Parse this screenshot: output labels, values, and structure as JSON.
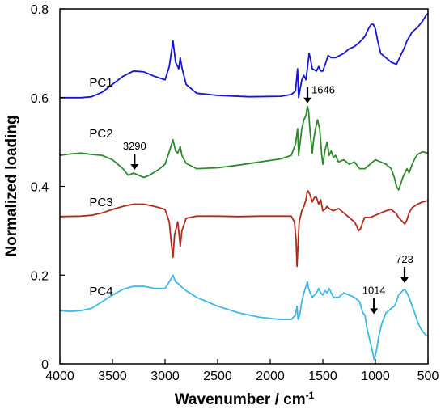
{
  "chart_data": {
    "type": "line",
    "xlabel": "Wavenumber / cm",
    "xlabel_sup": "-1",
    "ylabel": "Normalized loading",
    "xlim": [
      4000,
      500
    ],
    "ylim": [
      0,
      0.8
    ],
    "x_ticks": [
      4000,
      3500,
      3000,
      2500,
      2000,
      1500,
      1000,
      500
    ],
    "y_ticks": [
      0,
      0.2,
      0.4,
      0.6,
      0.8
    ],
    "y_tick_labels": [
      "0",
      "0.2",
      "0.4",
      "0.6",
      "0.8"
    ],
    "grid": false,
    "series": [
      {
        "name": "PC1",
        "color": "#1515d6",
        "points": [
          [
            4000,
            0.6
          ],
          [
            3800,
            0.6
          ],
          [
            3700,
            0.602
          ],
          [
            3600,
            0.612
          ],
          [
            3500,
            0.63
          ],
          [
            3400,
            0.648
          ],
          [
            3300,
            0.66
          ],
          [
            3200,
            0.658
          ],
          [
            3100,
            0.648
          ],
          [
            3000,
            0.64
          ],
          [
            2960,
            0.67
          ],
          [
            2925,
            0.728
          ],
          [
            2900,
            0.68
          ],
          [
            2870,
            0.665
          ],
          [
            2855,
            0.69
          ],
          [
            2840,
            0.668
          ],
          [
            2800,
            0.63
          ],
          [
            2700,
            0.61
          ],
          [
            2500,
            0.605
          ],
          [
            2200,
            0.602
          ],
          [
            1900,
            0.603
          ],
          [
            1800,
            0.607
          ],
          [
            1760,
            0.615
          ],
          [
            1740,
            0.665
          ],
          [
            1730,
            0.6
          ],
          [
            1715,
            0.62
          ],
          [
            1700,
            0.64
          ],
          [
            1680,
            0.65
          ],
          [
            1660,
            0.64
          ],
          [
            1640,
            0.68
          ],
          [
            1630,
            0.7
          ],
          [
            1620,
            0.69
          ],
          [
            1600,
            0.665
          ],
          [
            1560,
            0.66
          ],
          [
            1540,
            0.67
          ],
          [
            1520,
            0.66
          ],
          [
            1500,
            0.66
          ],
          [
            1470,
            0.68
          ],
          [
            1450,
            0.695
          ],
          [
            1420,
            0.69
          ],
          [
            1380,
            0.69
          ],
          [
            1300,
            0.7
          ],
          [
            1250,
            0.71
          ],
          [
            1200,
            0.715
          ],
          [
            1150,
            0.725
          ],
          [
            1100,
            0.738
          ],
          [
            1060,
            0.758
          ],
          [
            1040,
            0.765
          ],
          [
            1020,
            0.765
          ],
          [
            1000,
            0.755
          ],
          [
            980,
            0.73
          ],
          [
            950,
            0.7
          ],
          [
            900,
            0.69
          ],
          [
            850,
            0.68
          ],
          [
            800,
            0.675
          ],
          [
            780,
            0.685
          ],
          [
            760,
            0.695
          ],
          [
            740,
            0.705
          ],
          [
            720,
            0.715
          ],
          [
            700,
            0.728
          ],
          [
            650,
            0.748
          ],
          [
            600,
            0.758
          ],
          [
            550,
            0.773
          ],
          [
            520,
            0.785
          ],
          [
            500,
            0.79
          ]
        ]
      },
      {
        "name": "PC2",
        "color": "#2f8a2f",
        "points": [
          [
            4000,
            0.47
          ],
          [
            3900,
            0.473
          ],
          [
            3800,
            0.475
          ],
          [
            3700,
            0.472
          ],
          [
            3600,
            0.47
          ],
          [
            3500,
            0.46
          ],
          [
            3400,
            0.44
          ],
          [
            3350,
            0.425
          ],
          [
            3300,
            0.43
          ],
          [
            3250,
            0.425
          ],
          [
            3200,
            0.42
          ],
          [
            3150,
            0.425
          ],
          [
            3100,
            0.432
          ],
          [
            3050,
            0.44
          ],
          [
            3000,
            0.45
          ],
          [
            2960,
            0.478
          ],
          [
            2925,
            0.505
          ],
          [
            2900,
            0.48
          ],
          [
            2880,
            0.475
          ],
          [
            2855,
            0.49
          ],
          [
            2840,
            0.47
          ],
          [
            2800,
            0.452
          ],
          [
            2700,
            0.44
          ],
          [
            2500,
            0.442
          ],
          [
            2300,
            0.448
          ],
          [
            2100,
            0.455
          ],
          [
            1900,
            0.462
          ],
          [
            1800,
            0.47
          ],
          [
            1760,
            0.495
          ],
          [
            1740,
            0.53
          ],
          [
            1730,
            0.47
          ],
          [
            1720,
            0.49
          ],
          [
            1700,
            0.53
          ],
          [
            1680,
            0.55
          ],
          [
            1660,
            0.56
          ],
          [
            1646,
            0.58
          ],
          [
            1635,
            0.57
          ],
          [
            1620,
            0.52
          ],
          [
            1600,
            0.475
          ],
          [
            1590,
            0.5
          ],
          [
            1570,
            0.53
          ],
          [
            1550,
            0.55
          ],
          [
            1530,
            0.53
          ],
          [
            1510,
            0.47
          ],
          [
            1500,
            0.45
          ],
          [
            1480,
            0.48
          ],
          [
            1460,
            0.5
          ],
          [
            1440,
            0.47
          ],
          [
            1420,
            0.48
          ],
          [
            1400,
            0.465
          ],
          [
            1380,
            0.47
          ],
          [
            1350,
            0.455
          ],
          [
            1300,
            0.46
          ],
          [
            1250,
            0.45
          ],
          [
            1200,
            0.455
          ],
          [
            1150,
            0.44
          ],
          [
            1100,
            0.44
          ],
          [
            1050,
            0.45
          ],
          [
            1000,
            0.46
          ],
          [
            950,
            0.455
          ],
          [
            900,
            0.45
          ],
          [
            850,
            0.44
          ],
          [
            820,
            0.42
          ],
          [
            800,
            0.4
          ],
          [
            780,
            0.392
          ],
          [
            760,
            0.405
          ],
          [
            740,
            0.42
          ],
          [
            720,
            0.43
          ],
          [
            700,
            0.44
          ],
          [
            680,
            0.43
          ],
          [
            650,
            0.45
          ],
          [
            620,
            0.465
          ],
          [
            600,
            0.472
          ],
          [
            550,
            0.478
          ],
          [
            500,
            0.475
          ]
        ]
      },
      {
        "name": "PC3",
        "color": "#b02a1e",
        "points": [
          [
            4000,
            0.332
          ],
          [
            3800,
            0.333
          ],
          [
            3700,
            0.335
          ],
          [
            3600,
            0.34
          ],
          [
            3500,
            0.348
          ],
          [
            3400,
            0.355
          ],
          [
            3300,
            0.36
          ],
          [
            3200,
            0.36
          ],
          [
            3100,
            0.355
          ],
          [
            3000,
            0.348
          ],
          [
            2960,
            0.32
          ],
          [
            2940,
            0.27
          ],
          [
            2925,
            0.24
          ],
          [
            2910,
            0.29
          ],
          [
            2880,
            0.32
          ],
          [
            2870,
            0.3
          ],
          [
            2855,
            0.265
          ],
          [
            2840,
            0.3
          ],
          [
            2800,
            0.328
          ],
          [
            2700,
            0.333
          ],
          [
            2500,
            0.333
          ],
          [
            2300,
            0.332
          ],
          [
            2100,
            0.333
          ],
          [
            1900,
            0.333
          ],
          [
            1800,
            0.333
          ],
          [
            1770,
            0.32
          ],
          [
            1755,
            0.28
          ],
          [
            1745,
            0.22
          ],
          [
            1735,
            0.27
          ],
          [
            1725,
            0.32
          ],
          [
            1700,
            0.345
          ],
          [
            1680,
            0.355
          ],
          [
            1660,
            0.37
          ],
          [
            1650,
            0.385
          ],
          [
            1640,
            0.39
          ],
          [
            1620,
            0.38
          ],
          [
            1600,
            0.365
          ],
          [
            1580,
            0.375
          ],
          [
            1560,
            0.375
          ],
          [
            1540,
            0.36
          ],
          [
            1520,
            0.37
          ],
          [
            1500,
            0.345
          ],
          [
            1480,
            0.348
          ],
          [
            1460,
            0.355
          ],
          [
            1440,
            0.35
          ],
          [
            1400,
            0.345
          ],
          [
            1350,
            0.35
          ],
          [
            1300,
            0.34
          ],
          [
            1250,
            0.33
          ],
          [
            1200,
            0.32
          ],
          [
            1180,
            0.312
          ],
          [
            1160,
            0.3
          ],
          [
            1140,
            0.305
          ],
          [
            1120,
            0.32
          ],
          [
            1100,
            0.33
          ],
          [
            1050,
            0.33
          ],
          [
            1000,
            0.335
          ],
          [
            950,
            0.34
          ],
          [
            900,
            0.345
          ],
          [
            850,
            0.348
          ],
          [
            820,
            0.342
          ],
          [
            800,
            0.338
          ],
          [
            780,
            0.33
          ],
          [
            760,
            0.325
          ],
          [
            740,
            0.32
          ],
          [
            720,
            0.315
          ],
          [
            700,
            0.325
          ],
          [
            680,
            0.34
          ],
          [
            650,
            0.352
          ],
          [
            600,
            0.36
          ],
          [
            550,
            0.365
          ],
          [
            500,
            0.368
          ]
        ]
      },
      {
        "name": "PC4",
        "color": "#3db8e8",
        "points": [
          [
            4000,
            0.12
          ],
          [
            3900,
            0.118
          ],
          [
            3800,
            0.12
          ],
          [
            3700,
            0.125
          ],
          [
            3600,
            0.14
          ],
          [
            3500,
            0.155
          ],
          [
            3400,
            0.168
          ],
          [
            3300,
            0.175
          ],
          [
            3200,
            0.175
          ],
          [
            3100,
            0.17
          ],
          [
            3000,
            0.17
          ],
          [
            2960,
            0.185
          ],
          [
            2925,
            0.2
          ],
          [
            2900,
            0.185
          ],
          [
            2870,
            0.18
          ],
          [
            2850,
            0.175
          ],
          [
            2800,
            0.165
          ],
          [
            2700,
            0.15
          ],
          [
            2500,
            0.13
          ],
          [
            2300,
            0.115
          ],
          [
            2100,
            0.105
          ],
          [
            1900,
            0.1
          ],
          [
            1800,
            0.1
          ],
          [
            1760,
            0.11
          ],
          [
            1745,
            0.13
          ],
          [
            1735,
            0.1
          ],
          [
            1720,
            0.11
          ],
          [
            1700,
            0.14
          ],
          [
            1680,
            0.16
          ],
          [
            1660,
            0.175
          ],
          [
            1646,
            0.185
          ],
          [
            1635,
            0.17
          ],
          [
            1620,
            0.16
          ],
          [
            1600,
            0.15
          ],
          [
            1580,
            0.155
          ],
          [
            1560,
            0.16
          ],
          [
            1540,
            0.17
          ],
          [
            1520,
            0.16
          ],
          [
            1500,
            0.155
          ],
          [
            1480,
            0.165
          ],
          [
            1460,
            0.16
          ],
          [
            1440,
            0.17
          ],
          [
            1420,
            0.16
          ],
          [
            1400,
            0.15
          ],
          [
            1350,
            0.15
          ],
          [
            1300,
            0.16
          ],
          [
            1250,
            0.155
          ],
          [
            1200,
            0.15
          ],
          [
            1150,
            0.14
          ],
          [
            1120,
            0.115
          ],
          [
            1100,
            0.11
          ],
          [
            1080,
            0.08
          ],
          [
            1060,
            0.06
          ],
          [
            1040,
            0.04
          ],
          [
            1020,
            0.02
          ],
          [
            1014,
            0.01
          ],
          [
            1005,
            0.015
          ],
          [
            990,
            0.03
          ],
          [
            970,
            0.06
          ],
          [
            940,
            0.09
          ],
          [
            900,
            0.115
          ],
          [
            850,
            0.125
          ],
          [
            820,
            0.13
          ],
          [
            800,
            0.14
          ],
          [
            780,
            0.155
          ],
          [
            760,
            0.16
          ],
          [
            740,
            0.165
          ],
          [
            723,
            0.168
          ],
          [
            700,
            0.16
          ],
          [
            680,
            0.15
          ],
          [
            650,
            0.13
          ],
          [
            620,
            0.11
          ],
          [
            600,
            0.095
          ],
          [
            570,
            0.08
          ],
          [
            540,
            0.07
          ],
          [
            520,
            0.065
          ],
          [
            500,
            0.062
          ]
        ]
      }
    ],
    "series_labels": [
      {
        "text": "PC1",
        "x": 3720,
        "y": 0.625
      },
      {
        "text": "PC2",
        "x": 3720,
        "y": 0.51
      },
      {
        "text": "PC3",
        "x": 3720,
        "y": 0.355
      },
      {
        "text": "PC4",
        "x": 3720,
        "y": 0.155
      }
    ],
    "annotations": [
      {
        "text": "1646",
        "x": 1646,
        "y": 0.58,
        "label_side": "right"
      },
      {
        "text": "3290",
        "x": 3290,
        "y": 0.43,
        "label_side": "top"
      },
      {
        "text": "1014",
        "x": 1014,
        "y": 0.105,
        "label_side": "top"
      },
      {
        "text": "723",
        "x": 723,
        "y": 0.175,
        "label_side": "top"
      }
    ]
  }
}
